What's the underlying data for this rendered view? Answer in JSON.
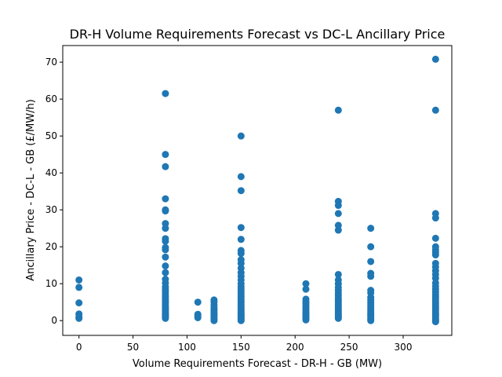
{
  "chart_data": {
    "type": "scatter",
    "title": "DR-H Volume Requirements Forecast vs DC-L Ancillary Price",
    "xlabel": "Volume Requirements Forecast - DR-H - GB (MW)",
    "ylabel": "Ancillary Price - DC-L - GB (£/MW/h)",
    "xlim": [
      -15,
      345
    ],
    "ylim": [
      -4,
      74.5
    ],
    "xticks": [
      0,
      50,
      100,
      150,
      200,
      250,
      300
    ],
    "yticks": [
      0,
      10,
      20,
      30,
      40,
      50,
      60,
      70
    ],
    "grid": false,
    "legend": "none",
    "colors": {
      "marker": "#1f77b4"
    },
    "series": [
      {
        "points": [
          [
            0,
            11
          ],
          [
            0,
            9
          ],
          [
            0,
            4.8
          ],
          [
            0,
            1.8
          ],
          [
            0,
            1
          ],
          [
            0,
            0.6
          ],
          [
            80,
            61.5
          ],
          [
            80,
            45
          ],
          [
            80,
            41.7
          ],
          [
            80,
            33
          ],
          [
            80,
            30
          ],
          [
            80,
            29.7
          ],
          [
            80,
            26.3
          ],
          [
            80,
            25
          ],
          [
            80,
            22.2
          ],
          [
            80,
            21.5
          ],
          [
            80,
            19.8
          ],
          [
            80,
            19.2
          ],
          [
            80,
            17.2
          ],
          [
            80,
            14.8
          ],
          [
            80,
            13
          ],
          [
            80,
            11.2
          ],
          [
            80,
            10.2
          ],
          [
            80,
            9.2
          ],
          [
            80,
            8.5
          ],
          [
            80,
            7.8
          ],
          [
            80,
            7.1
          ],
          [
            80,
            6.5
          ],
          [
            80,
            5.9
          ],
          [
            80,
            5.3
          ],
          [
            80,
            4.8
          ],
          [
            80,
            4.3
          ],
          [
            80,
            3.8
          ],
          [
            80,
            3.4
          ],
          [
            80,
            3
          ],
          [
            80,
            2.6
          ],
          [
            80,
            2.2
          ],
          [
            80,
            1.8
          ],
          [
            80,
            1.5
          ],
          [
            80,
            1.2
          ],
          [
            80,
            0.9
          ],
          [
            80,
            0.6
          ],
          [
            110,
            5
          ],
          [
            110,
            1.7
          ],
          [
            110,
            1.2
          ],
          [
            110,
            0.8
          ],
          [
            125,
            5.6
          ],
          [
            125,
            5
          ],
          [
            125,
            4.2
          ],
          [
            125,
            3.5
          ],
          [
            125,
            3
          ],
          [
            125,
            2.5
          ],
          [
            125,
            2
          ],
          [
            125,
            1.6
          ],
          [
            125,
            1.2
          ],
          [
            125,
            0.8
          ],
          [
            125,
            0.4
          ],
          [
            125,
            0
          ],
          [
            150,
            50
          ],
          [
            150,
            39
          ],
          [
            150,
            35.2
          ],
          [
            150,
            25.2
          ],
          [
            150,
            22
          ],
          [
            150,
            19
          ],
          [
            150,
            18.2
          ],
          [
            150,
            16.5
          ],
          [
            150,
            15.5
          ],
          [
            150,
            14.2
          ],
          [
            150,
            13
          ],
          [
            150,
            12
          ],
          [
            150,
            11
          ],
          [
            150,
            10
          ],
          [
            150,
            9.2
          ],
          [
            150,
            8.5
          ],
          [
            150,
            7.8
          ],
          [
            150,
            7.1
          ],
          [
            150,
            6.5
          ],
          [
            150,
            5.9
          ],
          [
            150,
            5.3
          ],
          [
            150,
            4.8
          ],
          [
            150,
            4.3
          ],
          [
            150,
            3.8
          ],
          [
            150,
            3.3
          ],
          [
            150,
            2.9
          ],
          [
            150,
            2.5
          ],
          [
            150,
            2.1
          ],
          [
            150,
            1.7
          ],
          [
            150,
            1.4
          ],
          [
            150,
            1.1
          ],
          [
            150,
            0.8
          ],
          [
            150,
            0.5
          ],
          [
            150,
            0.2
          ],
          [
            150,
            0
          ],
          [
            210,
            10
          ],
          [
            210,
            8.5
          ],
          [
            210,
            5.8
          ],
          [
            210,
            5.1
          ],
          [
            210,
            4.5
          ],
          [
            210,
            3.9
          ],
          [
            210,
            3.3
          ],
          [
            210,
            2.8
          ],
          [
            210,
            2.3
          ],
          [
            210,
            1.8
          ],
          [
            210,
            1.4
          ],
          [
            210,
            1
          ],
          [
            210,
            0.6
          ],
          [
            210,
            0.2
          ],
          [
            240,
            57
          ],
          [
            240,
            32.3
          ],
          [
            240,
            31.2
          ],
          [
            240,
            29
          ],
          [
            240,
            25.8
          ],
          [
            240,
            24.5
          ],
          [
            240,
            12.5
          ],
          [
            240,
            11
          ],
          [
            240,
            10
          ],
          [
            240,
            9
          ],
          [
            240,
            8.2
          ],
          [
            240,
            7.4
          ],
          [
            240,
            6.7
          ],
          [
            240,
            6
          ],
          [
            240,
            5.4
          ],
          [
            240,
            4.8
          ],
          [
            240,
            4.3
          ],
          [
            240,
            3.8
          ],
          [
            240,
            3.3
          ],
          [
            240,
            2.8
          ],
          [
            240,
            2.4
          ],
          [
            240,
            2
          ],
          [
            240,
            1.6
          ],
          [
            240,
            1.2
          ],
          [
            240,
            0.9
          ],
          [
            240,
            0.6
          ],
          [
            270,
            25
          ],
          [
            270,
            20
          ],
          [
            270,
            16
          ],
          [
            270,
            12.8
          ],
          [
            270,
            12
          ],
          [
            270,
            8.2
          ],
          [
            270,
            7.5
          ],
          [
            270,
            6.3
          ],
          [
            270,
            5.5
          ],
          [
            270,
            4.8
          ],
          [
            270,
            4.2
          ],
          [
            270,
            3.6
          ],
          [
            270,
            3
          ],
          [
            270,
            2.5
          ],
          [
            270,
            2
          ],
          [
            270,
            1.6
          ],
          [
            270,
            1.2
          ],
          [
            270,
            0.8
          ],
          [
            270,
            0.4
          ],
          [
            270,
            0
          ],
          [
            330,
            70.8
          ],
          [
            330,
            57
          ],
          [
            330,
            29
          ],
          [
            330,
            27.8
          ],
          [
            330,
            22.3
          ],
          [
            330,
            20
          ],
          [
            330,
            19.2
          ],
          [
            330,
            18.5
          ],
          [
            330,
            17.8
          ],
          [
            330,
            15.5
          ],
          [
            330,
            14.5
          ],
          [
            330,
            13.5
          ],
          [
            330,
            12.5
          ],
          [
            330,
            11.5
          ],
          [
            330,
            10.2
          ],
          [
            330,
            9.3
          ],
          [
            330,
            8.5
          ],
          [
            330,
            7.7
          ],
          [
            330,
            7
          ],
          [
            330,
            6.3
          ],
          [
            330,
            5.7
          ],
          [
            330,
            5.1
          ],
          [
            330,
            4.5
          ],
          [
            330,
            4
          ],
          [
            330,
            3.5
          ],
          [
            330,
            3
          ],
          [
            330,
            2.5
          ],
          [
            330,
            2
          ],
          [
            330,
            1.6
          ],
          [
            330,
            1.2
          ],
          [
            330,
            0.8
          ],
          [
            330,
            0.4
          ],
          [
            330,
            0
          ],
          [
            330,
            -0.3
          ]
        ]
      }
    ]
  }
}
